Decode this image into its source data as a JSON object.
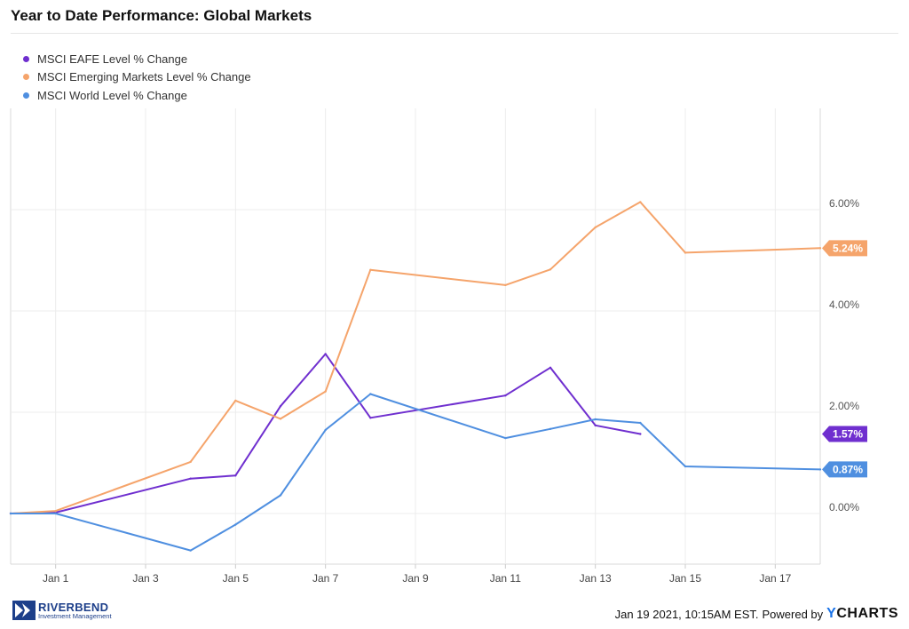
{
  "title": "Year to Date Performance: Global Markets",
  "footer": {
    "logo_name": "RIVERBEND",
    "logo_sub": "Investment Management",
    "timestamp": "Jan 19 2021, 10:15AM EST.",
    "powered_by": "Powered by",
    "brand_y": "Y",
    "brand_rest": "CHARTS"
  },
  "chart_data": {
    "type": "line",
    "title": "Year to Date Performance: Global Markets",
    "xlabel": "",
    "ylabel": "",
    "x": [
      "2020-12-31",
      "2021-01-01",
      "2021-01-04",
      "2021-01-05",
      "2021-01-06",
      "2021-01-07",
      "2021-01-08",
      "2021-01-11",
      "2021-01-12",
      "2021-01-13",
      "2021-01-14",
      "2021-01-15",
      "2021-01-18"
    ],
    "x_tick_labels": [
      "Jan 1",
      "Jan 3",
      "Jan 5",
      "Jan 7",
      "Jan 9",
      "Jan 11",
      "Jan 13",
      "Jan 15",
      "Jan 17"
    ],
    "x_tick_dates": [
      "2021-01-01",
      "2021-01-03",
      "2021-01-05",
      "2021-01-07",
      "2021-01-09",
      "2021-01-11",
      "2021-01-13",
      "2021-01-15",
      "2021-01-17"
    ],
    "ylim": [
      -1.0,
      8.0
    ],
    "y_ticks": [
      0,
      2,
      4,
      6
    ],
    "y_tick_labels": [
      "0.00%",
      "2.00%",
      "4.00%",
      "6.00%"
    ],
    "grid": true,
    "legend_position": "top-left",
    "series": [
      {
        "name": "MSCI EAFE Level % Change",
        "color": "#6f2fcf",
        "values": [
          0.0,
          0.02,
          0.69,
          0.75,
          2.12,
          3.15,
          1.89,
          2.33,
          2.88,
          1.74,
          1.57,
          null,
          null
        ],
        "end_label": "1.57%"
      },
      {
        "name": "MSCI Emerging Markets Level % Change",
        "color": "#f5a46b",
        "values": [
          0.0,
          0.05,
          1.02,
          2.23,
          1.87,
          2.41,
          4.81,
          4.51,
          4.82,
          5.65,
          6.15,
          5.15,
          5.24
        ],
        "end_label": "5.24%"
      },
      {
        "name": "MSCI World Level % Change",
        "color": "#4f8fe0",
        "values": [
          0.0,
          0.0,
          -0.73,
          -0.22,
          0.36,
          1.65,
          2.36,
          1.49,
          1.67,
          1.86,
          1.79,
          0.93,
          0.87
        ],
        "end_label": "0.87%"
      }
    ]
  }
}
